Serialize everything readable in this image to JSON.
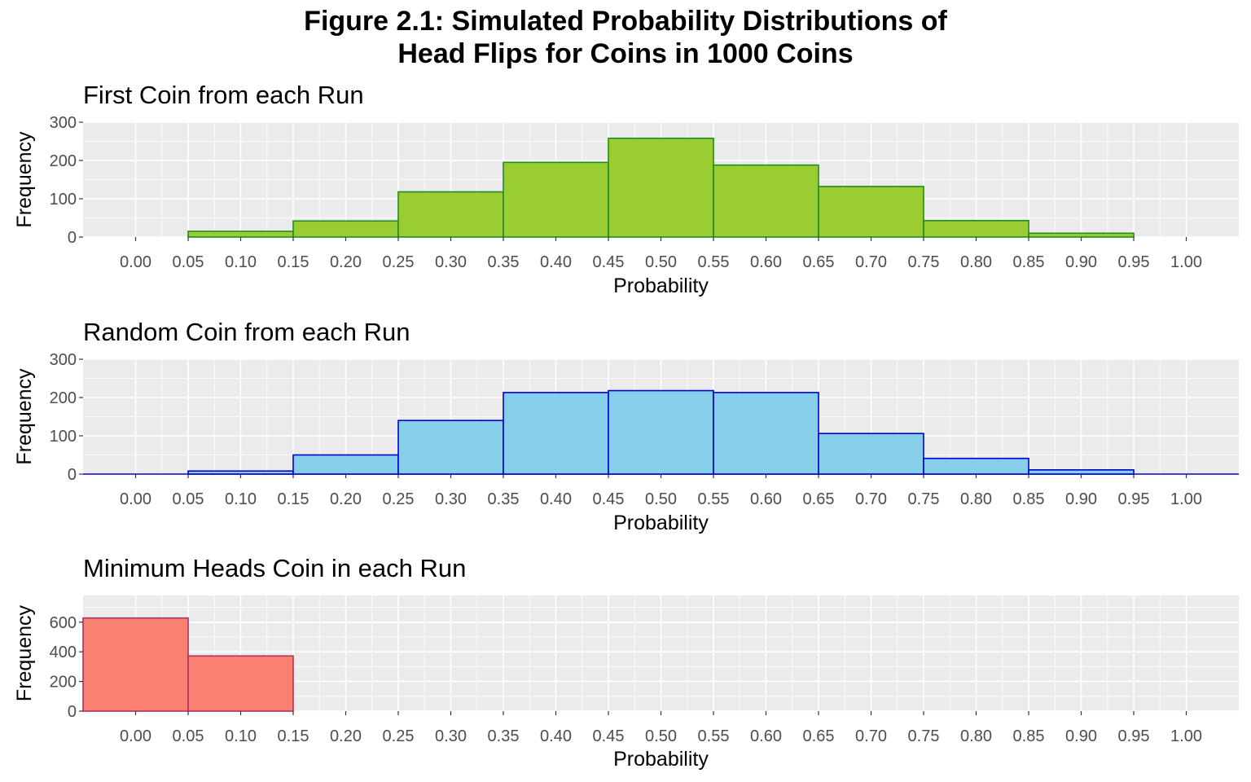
{
  "figure": {
    "title_line1": "Figure 2.1: Simulated Probability Distributions of",
    "title_line2": "Head Flips for Coins in 1000 Coins"
  },
  "chart_data": [
    {
      "type": "bar",
      "title": "First Coin from each Run",
      "xlabel": "Probability",
      "ylabel": "Frequency",
      "fill": "#9ACD32",
      "stroke": "#228B22",
      "xlim": [
        -0.05,
        1.05
      ],
      "ylim": [
        0,
        300
      ],
      "yticks": [
        0,
        100,
        200,
        300
      ],
      "xticks": [
        "0.00",
        "0.05",
        "0.10",
        "0.15",
        "0.20",
        "0.25",
        "0.30",
        "0.35",
        "0.40",
        "0.45",
        "0.50",
        "0.55",
        "0.60",
        "0.65",
        "0.70",
        "0.75",
        "0.80",
        "0.85",
        "0.90",
        "0.95",
        "1.00"
      ],
      "bins": [
        {
          "x0": 0.05,
          "x1": 0.15,
          "count": 15
        },
        {
          "x0": 0.15,
          "x1": 0.25,
          "count": 42
        },
        {
          "x0": 0.25,
          "x1": 0.35,
          "count": 118
        },
        {
          "x0": 0.35,
          "x1": 0.45,
          "count": 195
        },
        {
          "x0": 0.45,
          "x1": 0.55,
          "count": 258
        },
        {
          "x0": 0.55,
          "x1": 0.65,
          "count": 188
        },
        {
          "x0": 0.65,
          "x1": 0.75,
          "count": 132
        },
        {
          "x0": 0.75,
          "x1": 0.85,
          "count": 43
        },
        {
          "x0": 0.85,
          "x1": 0.95,
          "count": 10
        }
      ],
      "baseline_extends": false,
      "grid": true
    },
    {
      "type": "bar",
      "title": "Random Coin from each Run",
      "xlabel": "Probability",
      "ylabel": "Frequency",
      "fill": "#87CEEB",
      "stroke": "#0000CD",
      "xlim": [
        -0.05,
        1.05
      ],
      "ylim": [
        0,
        300
      ],
      "yticks": [
        0,
        100,
        200,
        300
      ],
      "xticks": [
        "0.00",
        "0.05",
        "0.10",
        "0.15",
        "0.20",
        "0.25",
        "0.30",
        "0.35",
        "0.40",
        "0.45",
        "0.50",
        "0.55",
        "0.60",
        "0.65",
        "0.70",
        "0.75",
        "0.80",
        "0.85",
        "0.90",
        "0.95",
        "1.00"
      ],
      "bins": [
        {
          "x0": 0.05,
          "x1": 0.15,
          "count": 8
        },
        {
          "x0": 0.15,
          "x1": 0.25,
          "count": 50
        },
        {
          "x0": 0.25,
          "x1": 0.35,
          "count": 140
        },
        {
          "x0": 0.35,
          "x1": 0.45,
          "count": 213
        },
        {
          "x0": 0.45,
          "x1": 0.55,
          "count": 218
        },
        {
          "x0": 0.55,
          "x1": 0.65,
          "count": 213
        },
        {
          "x0": 0.65,
          "x1": 0.75,
          "count": 106
        },
        {
          "x0": 0.75,
          "x1": 0.85,
          "count": 41
        },
        {
          "x0": 0.85,
          "x1": 0.95,
          "count": 11
        }
      ],
      "baseline_extends": true,
      "grid": true
    },
    {
      "type": "bar",
      "title": "Minimum Heads Coin in each Run",
      "xlabel": "Probability",
      "ylabel": "Frequency",
      "fill": "#FA8072",
      "stroke": "#B03060",
      "xlim": [
        -0.05,
        1.05
      ],
      "ylim": [
        0,
        780
      ],
      "yticks": [
        0,
        200,
        400,
        600
      ],
      "xticks": [
        "0.00",
        "0.05",
        "0.10",
        "0.15",
        "0.20",
        "0.25",
        "0.30",
        "0.35",
        "0.40",
        "0.45",
        "0.50",
        "0.55",
        "0.60",
        "0.65",
        "0.70",
        "0.75",
        "0.80",
        "0.85",
        "0.90",
        "0.95",
        "1.00"
      ],
      "bins": [
        {
          "x0": -0.05,
          "x1": 0.05,
          "count": 628
        },
        {
          "x0": 0.05,
          "x1": 0.15,
          "count": 372
        }
      ],
      "baseline_extends": false,
      "grid": true
    }
  ]
}
